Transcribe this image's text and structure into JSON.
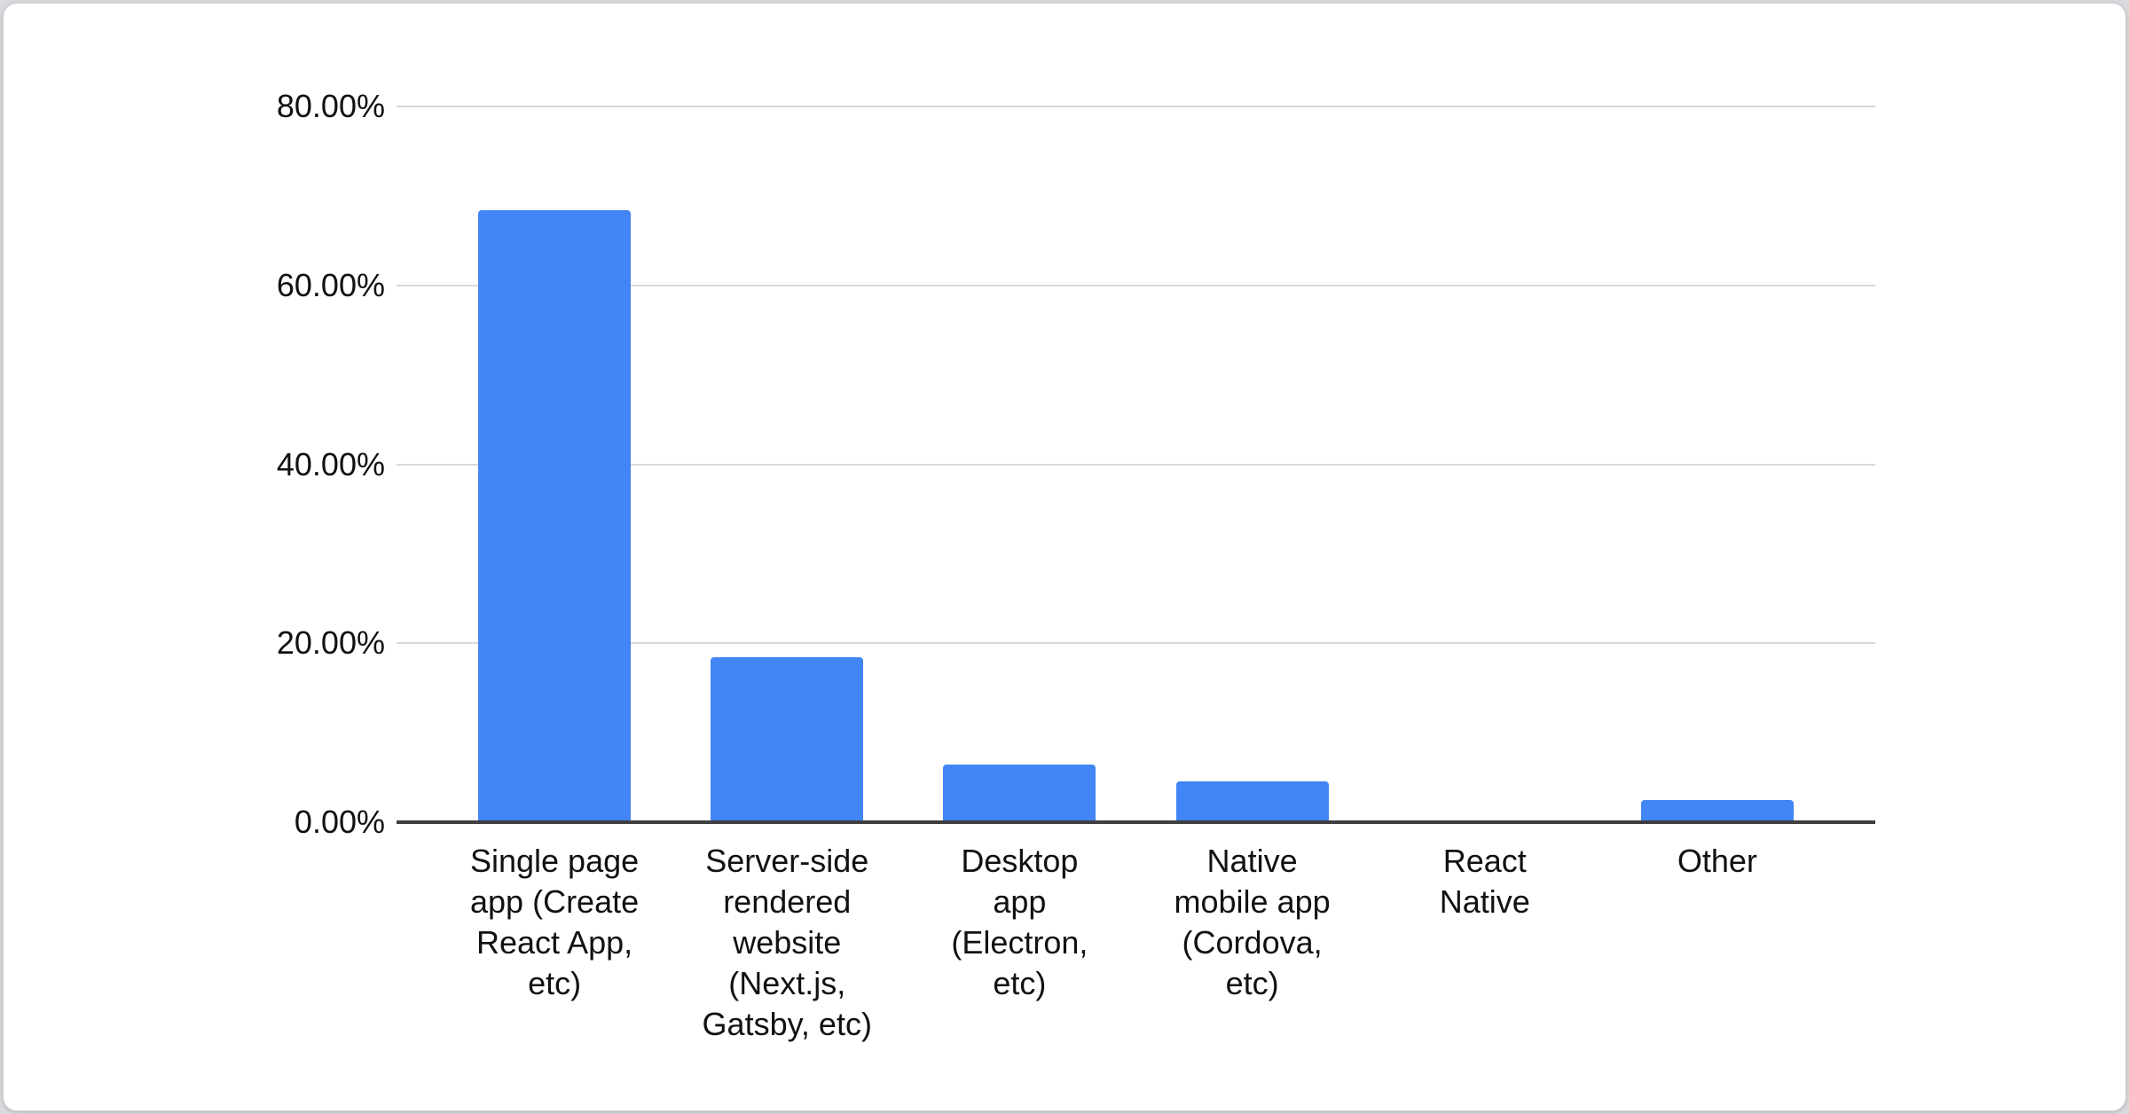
{
  "chart_data": {
    "type": "bar",
    "title": "",
    "xlabel": "",
    "ylabel": "",
    "categories": [
      "Single page app (Create React App, etc)",
      "Server-side rendered website (Next.js, Gatsby, etc)",
      "Desktop app (Electron, etc)",
      "Native mobile app (Cordova, etc)",
      "React Native",
      "Other"
    ],
    "category_display_lines": [
      "Single page\napp (Create\nReact App,\netc)",
      "Server-side\nrendered\nwebsite\n(Next.js,\nGatsby, etc)",
      "Desktop\napp\n(Electron,\netc)",
      "Native\nmobile app\n(Cordova,\netc)",
      "React\nNative",
      "Other"
    ],
    "values": [
      68.4,
      18.4,
      6.4,
      4.6,
      0.0,
      2.5
    ],
    "value_unit": "percent",
    "ylim": [
      0,
      80
    ],
    "ytick_labels": [
      "80.00%",
      "60.00%",
      "40.00%",
      "20.00%",
      "0.00%"
    ],
    "ytick_values": [
      80,
      60,
      40,
      20,
      0
    ],
    "grid": "horizontal",
    "legend": "none",
    "bar_color": "#4285f4",
    "gridline_color": "#d9d9d9",
    "axis_line_color": "#3f3f3f",
    "text_color": "#111111"
  }
}
